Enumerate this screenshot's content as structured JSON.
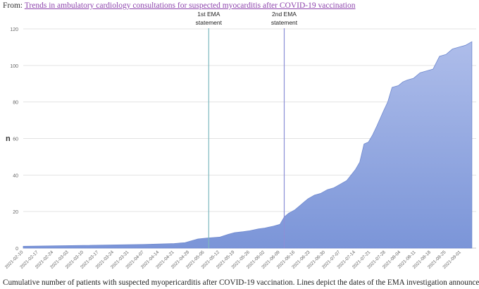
{
  "header": {
    "from_label": "From:",
    "article_link": "Trends in ambulatory cardiology consultations for suspected myocarditis after COVID-19 vaccination"
  },
  "caption": "Cumulative number of patients with suspected myopericarditis after COVID-19 vaccination. Lines depict the dates of the EMA investigation announcements",
  "chart_data": {
    "type": "area",
    "title": "",
    "xlabel": "",
    "ylabel": "n",
    "ylim": [
      0,
      120
    ],
    "yticks": [
      0,
      20,
      40,
      60,
      80,
      100,
      120
    ],
    "grid": "horizontal",
    "x_start": "2021-02-10",
    "x_end": "2021-09-08",
    "xtick_labels": [
      "2021-02-10",
      "2021-02-17",
      "2021-02-24",
      "2021-03-03",
      "2021-03-10",
      "2021-03-17",
      "2021-03-24",
      "2021-03-31",
      "2021-04-07",
      "2021-04-14",
      "2021-04-21",
      "2021-04-28",
      "2021-05-05",
      "2021-05-12",
      "2021-05-19",
      "2021-05-26",
      "2021-06-02",
      "2021-06-09",
      "2021-06-16",
      "2021-06-23",
      "2021-06-30",
      "2021-07-07",
      "2021-07-14",
      "2021-07-21",
      "2021-07-28",
      "2021-08-04",
      "2021-08-11",
      "2021-08-18",
      "2021-08-25",
      "2021-09-01"
    ],
    "annotations": [
      {
        "date": "2021-05-07",
        "line1": "1st EMA",
        "line2": "statement",
        "color": "#7fb8bf"
      },
      {
        "date": "2021-06-11",
        "line1": "2nd EMA",
        "line2": "statement",
        "color": "#8c8fd6"
      }
    ],
    "series": [
      {
        "fill_color": "#7b95d8",
        "x": [
          "2021-02-10",
          "2021-03-10",
          "2021-04-07",
          "2021-04-21",
          "2021-04-26",
          "2021-04-29",
          "2021-05-02",
          "2021-05-06",
          "2021-05-12",
          "2021-05-16",
          "2021-05-19",
          "2021-05-23",
          "2021-05-26",
          "2021-05-30",
          "2021-06-02",
          "2021-06-06",
          "2021-06-09",
          "2021-06-11",
          "2021-06-13",
          "2021-06-16",
          "2021-06-18",
          "2021-06-20",
          "2021-06-22",
          "2021-06-25",
          "2021-06-28",
          "2021-07-01",
          "2021-07-04",
          "2021-07-07",
          "2021-07-10",
          "2021-07-12",
          "2021-07-14",
          "2021-07-16",
          "2021-07-18",
          "2021-07-20",
          "2021-07-22",
          "2021-07-24",
          "2021-07-27",
          "2021-07-29",
          "2021-07-31",
          "2021-08-03",
          "2021-08-05",
          "2021-08-07",
          "2021-08-10",
          "2021-08-13",
          "2021-08-16",
          "2021-08-19",
          "2021-08-22",
          "2021-08-25",
          "2021-08-28",
          "2021-08-31",
          "2021-09-03",
          "2021-09-06"
        ],
        "y": [
          1,
          1.5,
          2,
          2.5,
          3,
          4,
          5,
          5.5,
          6,
          7.5,
          8.5,
          9,
          9.5,
          10.5,
          11,
          12,
          13,
          17,
          19,
          21,
          23,
          25,
          27,
          29,
          30,
          32,
          33,
          35,
          37,
          40,
          43,
          47,
          57,
          58,
          62,
          67,
          75,
          80,
          88,
          89,
          91,
          92,
          93,
          96,
          97,
          98,
          105,
          106,
          109,
          110,
          111,
          113
        ]
      }
    ]
  }
}
